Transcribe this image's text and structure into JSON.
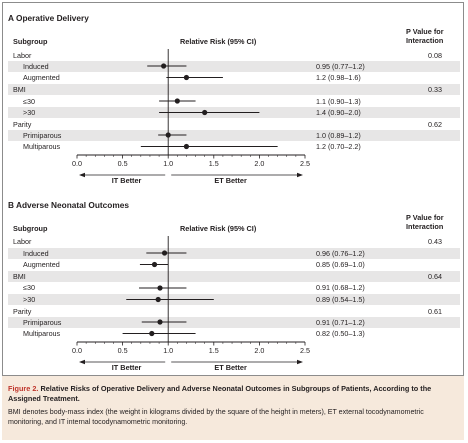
{
  "caption": {
    "figure_label": "Figure 2.",
    "title": "Relative Risks of Operative Delivery and Adverse Neonatal Outcomes in Subgroups of Patients, According to the Assigned Treatment.",
    "body": "BMI denotes body-mass index (the weight in kilograms divided by the square of the height in meters), ET external tocodynamometric monitoring, and IT internal tocodynamometric monitoring."
  },
  "colors": {
    "panel_frame": "#8c8c8c",
    "row_shade": "#e7e6e6",
    "caption_bg": "#f6e9dc",
    "figure_label": "#c0362c",
    "marker": "#231f20"
  },
  "chart_data": [
    {
      "type": "forest",
      "title": "A Operative Delivery",
      "headers": {
        "subgroup": "Subgroup",
        "effect": "Relative Risk (95% CI)",
        "pvalue": "P Value for Interaction"
      },
      "xlim": [
        0,
        2.5
      ],
      "ticks": [
        "0.0",
        "0.5",
        "1.0",
        "1.5",
        "2.0",
        "2.5"
      ],
      "reference_line": 1.0,
      "direction_labels": {
        "left": "IT Better",
        "right": "ET Better"
      },
      "rows": [
        {
          "label": "Labor",
          "group": true,
          "pvalue": "0.08"
        },
        {
          "label": "Induced",
          "estimate": 0.95,
          "lower": 0.77,
          "upper": 1.2,
          "ci_text": "0.95 (0.77–1.2)"
        },
        {
          "label": "Augmented",
          "estimate": 1.2,
          "lower": 0.98,
          "upper": 1.6,
          "ci_text": "1.2 (0.98–1.6)"
        },
        {
          "label": "BMI",
          "group": true,
          "pvalue": "0.33"
        },
        {
          "label": "≤30",
          "estimate": 1.1,
          "lower": 0.9,
          "upper": 1.3,
          "ci_text": "1.1 (0.90–1.3)"
        },
        {
          "label": ">30",
          "estimate": 1.4,
          "lower": 0.9,
          "upper": 2.0,
          "ci_text": "1.4 (0.90–2.0)"
        },
        {
          "label": "Parity",
          "group": true,
          "pvalue": "0.62"
        },
        {
          "label": "Primiparous",
          "estimate": 1.0,
          "lower": 0.89,
          "upper": 1.2,
          "ci_text": "1.0 (0.89–1.2)"
        },
        {
          "label": "Multiparous",
          "estimate": 1.2,
          "lower": 0.7,
          "upper": 2.2,
          "ci_text": "1.2 (0.70–2.2)"
        }
      ]
    },
    {
      "type": "forest",
      "title": "B Adverse Neonatal Outcomes",
      "headers": {
        "subgroup": "Subgroup",
        "effect": "Relative Risk (95% CI)",
        "pvalue": "P Value for Interaction"
      },
      "xlim": [
        0,
        2.5
      ],
      "ticks": [
        "0.0",
        "0.5",
        "1.0",
        "1.5",
        "2.0",
        "2.5"
      ],
      "reference_line": 1.0,
      "direction_labels": {
        "left": "IT Better",
        "right": "ET Better"
      },
      "rows": [
        {
          "label": "Labor",
          "group": true,
          "pvalue": "0.43"
        },
        {
          "label": "Induced",
          "estimate": 0.96,
          "lower": 0.76,
          "upper": 1.2,
          "ci_text": "0.96 (0.76–1.2)"
        },
        {
          "label": "Augmented",
          "estimate": 0.85,
          "lower": 0.69,
          "upper": 1.0,
          "ci_text": "0.85 (0.69–1.0)"
        },
        {
          "label": "BMI",
          "group": true,
          "pvalue": "0.64"
        },
        {
          "label": "≤30",
          "estimate": 0.91,
          "lower": 0.68,
          "upper": 1.2,
          "ci_text": "0.91 (0.68–1.2)"
        },
        {
          "label": ">30",
          "estimate": 0.89,
          "lower": 0.54,
          "upper": 1.5,
          "ci_text": "0.89 (0.54–1.5)"
        },
        {
          "label": "Parity",
          "group": true,
          "pvalue": "0.61"
        },
        {
          "label": "Primiparous",
          "estimate": 0.91,
          "lower": 0.71,
          "upper": 1.2,
          "ci_text": "0.91 (0.71–1.2)"
        },
        {
          "label": "Multiparous",
          "estimate": 0.82,
          "lower": 0.5,
          "upper": 1.3,
          "ci_text": "0.82 (0.50–1.3)"
        }
      ]
    }
  ]
}
